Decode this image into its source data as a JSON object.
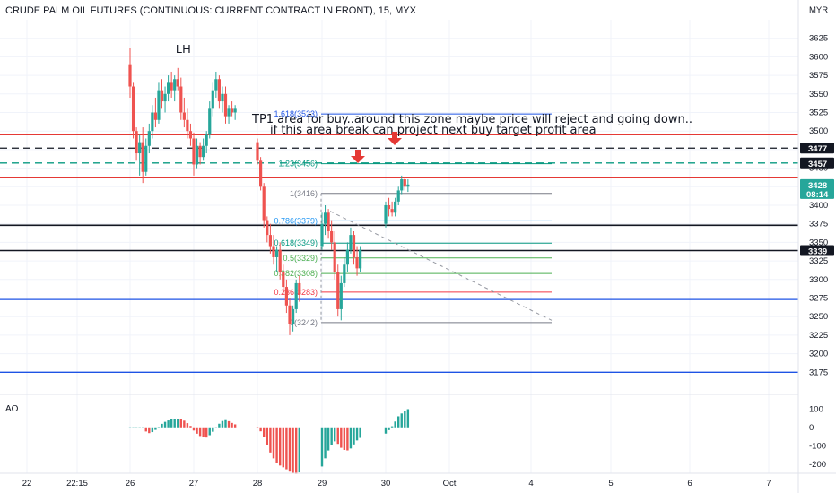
{
  "header": {
    "title": "CRUDE PALM OIL FUTURES (CONTINUOUS: CURRENT CONTRACT IN FRONT), 15, MYX",
    "currency": "MYR"
  },
  "annotations": {
    "lh": "LH",
    "line1": "TP1 area for buy..around this zone maybe price will reject and going down..",
    "line2": "if this area break can project next buy target profit area",
    "ao_label": "AO"
  },
  "price_tags": [
    {
      "value": 3477,
      "label": "3477",
      "bg": "#131722"
    },
    {
      "value": 3457,
      "label": "3457",
      "bg": "#131722"
    },
    {
      "value": 3428,
      "label": "3428",
      "sub": "08:14",
      "bg": "#26a69a"
    },
    {
      "value": 3339,
      "label": "3339",
      "bg": "#131722"
    }
  ],
  "colors": {
    "up": "#26a69a",
    "down": "#ef5350",
    "red_line": "#e53935",
    "blue_line": "#1e53e5",
    "black_line": "#131722",
    "green_dash": "#089981"
  },
  "chart_data": [
    {
      "type": "candlestick",
      "title": "CRUDE PALM OIL FUTURES (CONTINUOUS: CURRENT CONTRACT IN FRONT), 15, MYX",
      "ylim": [
        3150,
        3650
      ],
      "y_ticks": [
        3175,
        3200,
        3225,
        3250,
        3275,
        3300,
        3325,
        3350,
        3375,
        3400,
        3425,
        3450,
        3475,
        3500,
        3525,
        3550,
        3575,
        3600,
        3625
      ],
      "x_ticks": [
        {
          "label": "22",
          "pos": 0.0
        },
        {
          "label": "22:15",
          "pos": 1.0
        },
        {
          "label": "26",
          "pos": 2.0
        },
        {
          "label": "27",
          "pos": 3.0
        },
        {
          "label": "28",
          "pos": 4.0
        },
        {
          "label": "29",
          "pos": 5.0
        },
        {
          "label": "30",
          "pos": 6.0
        },
        {
          "label": "Oct",
          "pos": 7.0
        },
        {
          "label": "4",
          "pos": 8.0
        },
        {
          "label": "5",
          "pos": 9.0
        },
        {
          "label": "6",
          "pos": 10.0
        },
        {
          "label": "7",
          "pos": 11.0
        }
      ],
      "horizontal_lines": [
        {
          "price": 3495,
          "color": "red",
          "style": "solid"
        },
        {
          "price": 3477,
          "color": "black",
          "style": "dashed"
        },
        {
          "price": 3457,
          "color": "green",
          "style": "dashed"
        },
        {
          "price": 3437,
          "color": "red",
          "style": "solid"
        },
        {
          "price": 3373,
          "color": "black",
          "style": "solid"
        },
        {
          "price": 3339,
          "color": "black",
          "style": "solid"
        },
        {
          "price": 3273,
          "color": "blue",
          "style": "solid"
        },
        {
          "price": 3175,
          "color": "blue",
          "style": "solid"
        }
      ],
      "fib_levels": [
        {
          "label": "1.618(3523)",
          "price": 3523,
          "color": "#1e53e5"
        },
        {
          "label": "1.23(3456)",
          "price": 3456,
          "color": "#089981"
        },
        {
          "label": "1(3416)",
          "price": 3416,
          "color": "#787b86"
        },
        {
          "label": "0.786(3379)",
          "price": 3379,
          "color": "#2196f3"
        },
        {
          "label": "0.618(3349)",
          "price": 3349,
          "color": "#089981"
        },
        {
          "label": "0.5(3329)",
          "price": 3329,
          "color": "#4caf50"
        },
        {
          "label": "0.382(3308)",
          "price": 3308,
          "color": "#4caf50"
        },
        {
          "label": "0.236(3283)",
          "price": 3283,
          "color": "#f23645"
        },
        {
          "label": "0(3242)",
          "price": 3242,
          "color": "#787b86"
        }
      ],
      "candles": [
        {
          "t": 2.0,
          "o": 3590,
          "h": 3612,
          "l": 3545,
          "c": 3560
        },
        {
          "t": 2.05,
          "o": 3560,
          "h": 3565,
          "l": 3490,
          "c": 3500
        },
        {
          "t": 2.1,
          "o": 3500,
          "h": 3505,
          "l": 3460,
          "c": 3470
        },
        {
          "t": 2.15,
          "o": 3470,
          "h": 3495,
          "l": 3440,
          "c": 3485
        },
        {
          "t": 2.2,
          "o": 3485,
          "h": 3505,
          "l": 3430,
          "c": 3445
        },
        {
          "t": 2.25,
          "o": 3445,
          "h": 3490,
          "l": 3440,
          "c": 3480
        },
        {
          "t": 2.3,
          "o": 3480,
          "h": 3510,
          "l": 3470,
          "c": 3500
        },
        {
          "t": 2.35,
          "o": 3500,
          "h": 3535,
          "l": 3490,
          "c": 3525
        },
        {
          "t": 2.4,
          "o": 3525,
          "h": 3545,
          "l": 3505,
          "c": 3515
        },
        {
          "t": 2.45,
          "o": 3515,
          "h": 3565,
          "l": 3510,
          "c": 3555
        },
        {
          "t": 2.5,
          "o": 3555,
          "h": 3570,
          "l": 3530,
          "c": 3540
        },
        {
          "t": 2.55,
          "o": 3540,
          "h": 3560,
          "l": 3525,
          "c": 3550
        },
        {
          "t": 2.6,
          "o": 3550,
          "h": 3575,
          "l": 3540,
          "c": 3565
        },
        {
          "t": 2.65,
          "o": 3565,
          "h": 3580,
          "l": 3545,
          "c": 3555
        },
        {
          "t": 2.7,
          "o": 3555,
          "h": 3575,
          "l": 3540,
          "c": 3570
        },
        {
          "t": 2.75,
          "o": 3570,
          "h": 3585,
          "l": 3555,
          "c": 3560
        },
        {
          "t": 2.8,
          "o": 3560,
          "h": 3572,
          "l": 3515,
          "c": 3525
        },
        {
          "t": 2.85,
          "o": 3525,
          "h": 3545,
          "l": 3505,
          "c": 3515
        },
        {
          "t": 2.9,
          "o": 3515,
          "h": 3530,
          "l": 3490,
          "c": 3500
        },
        {
          "t": 2.95,
          "o": 3500,
          "h": 3510,
          "l": 3480,
          "c": 3490
        },
        {
          "t": 3.0,
          "o": 3490,
          "h": 3498,
          "l": 3440,
          "c": 3455
        },
        {
          "t": 3.05,
          "o": 3455,
          "h": 3490,
          "l": 3450,
          "c": 3480
        },
        {
          "t": 3.1,
          "o": 3480,
          "h": 3485,
          "l": 3455,
          "c": 3465
        },
        {
          "t": 3.15,
          "o": 3465,
          "h": 3490,
          "l": 3460,
          "c": 3480
        },
        {
          "t": 3.2,
          "o": 3480,
          "h": 3500,
          "l": 3470,
          "c": 3495
        },
        {
          "t": 3.25,
          "o": 3495,
          "h": 3540,
          "l": 3490,
          "c": 3530
        },
        {
          "t": 3.3,
          "o": 3530,
          "h": 3565,
          "l": 3520,
          "c": 3555
        },
        {
          "t": 3.35,
          "o": 3555,
          "h": 3580,
          "l": 3545,
          "c": 3570
        },
        {
          "t": 3.4,
          "o": 3570,
          "h": 3575,
          "l": 3530,
          "c": 3540
        },
        {
          "t": 3.45,
          "o": 3540,
          "h": 3560,
          "l": 3525,
          "c": 3550
        },
        {
          "t": 3.5,
          "o": 3550,
          "h": 3560,
          "l": 3510,
          "c": 3520
        },
        {
          "t": 3.55,
          "o": 3520,
          "h": 3535,
          "l": 3510,
          "c": 3530
        },
        {
          "t": 3.6,
          "o": 3530,
          "h": 3540,
          "l": 3520,
          "c": 3525
        },
        {
          "t": 3.65,
          "o": 3525,
          "h": 3535,
          "l": 3515,
          "c": 3530
        },
        {
          "t": 4.0,
          "o": 3485,
          "h": 3490,
          "l": 3455,
          "c": 3460
        },
        {
          "t": 4.05,
          "o": 3460,
          "h": 3465,
          "l": 3420,
          "c": 3425
        },
        {
          "t": 4.1,
          "o": 3425,
          "h": 3430,
          "l": 3370,
          "c": 3380
        },
        {
          "t": 4.15,
          "o": 3380,
          "h": 3385,
          "l": 3350,
          "c": 3360
        },
        {
          "t": 4.2,
          "o": 3360,
          "h": 3375,
          "l": 3335,
          "c": 3345
        },
        {
          "t": 4.25,
          "o": 3345,
          "h": 3360,
          "l": 3320,
          "c": 3330
        },
        {
          "t": 4.3,
          "o": 3330,
          "h": 3345,
          "l": 3310,
          "c": 3340
        },
        {
          "t": 4.35,
          "o": 3340,
          "h": 3350,
          "l": 3300,
          "c": 3310
        },
        {
          "t": 4.4,
          "o": 3310,
          "h": 3320,
          "l": 3280,
          "c": 3290
        },
        {
          "t": 4.45,
          "o": 3290,
          "h": 3300,
          "l": 3255,
          "c": 3265
        },
        {
          "t": 4.5,
          "o": 3265,
          "h": 3275,
          "l": 3225,
          "c": 3240
        },
        {
          "t": 4.55,
          "o": 3240,
          "h": 3265,
          "l": 3230,
          "c": 3260
        },
        {
          "t": 4.6,
          "o": 3260,
          "h": 3300,
          "l": 3255,
          "c": 3295
        },
        {
          "t": 4.65,
          "o": 3295,
          "h": 3305,
          "l": 3270,
          "c": 3280
        },
        {
          "t": 5.0,
          "o": 3345,
          "h": 3390,
          "l": 3340,
          "c": 3375
        },
        {
          "t": 5.05,
          "o": 3375,
          "h": 3400,
          "l": 3360,
          "c": 3390
        },
        {
          "t": 5.1,
          "o": 3390,
          "h": 3395,
          "l": 3355,
          "c": 3365
        },
        {
          "t": 5.15,
          "o": 3365,
          "h": 3380,
          "l": 3340,
          "c": 3350
        },
        {
          "t": 5.2,
          "o": 3350,
          "h": 3365,
          "l": 3300,
          "c": 3310
        },
        {
          "t": 5.25,
          "o": 3310,
          "h": 3320,
          "l": 3250,
          "c": 3260
        },
        {
          "t": 5.3,
          "o": 3260,
          "h": 3305,
          "l": 3245,
          "c": 3295
        },
        {
          "t": 5.35,
          "o": 3295,
          "h": 3330,
          "l": 3290,
          "c": 3320
        },
        {
          "t": 5.4,
          "o": 3320,
          "h": 3350,
          "l": 3310,
          "c": 3340
        },
        {
          "t": 5.45,
          "o": 3340,
          "h": 3370,
          "l": 3335,
          "c": 3360
        },
        {
          "t": 5.5,
          "o": 3360,
          "h": 3365,
          "l": 3320,
          "c": 3330
        },
        {
          "t": 5.55,
          "o": 3330,
          "h": 3345,
          "l": 3305,
          "c": 3315
        },
        {
          "t": 5.6,
          "o": 3315,
          "h": 3345,
          "l": 3310,
          "c": 3340
        },
        {
          "t": 6.0,
          "o": 3375,
          "h": 3405,
          "l": 3370,
          "c": 3400
        },
        {
          "t": 6.05,
          "o": 3400,
          "h": 3410,
          "l": 3385,
          "c": 3395
        },
        {
          "t": 6.1,
          "o": 3395,
          "h": 3405,
          "l": 3385,
          "c": 3390
        },
        {
          "t": 6.15,
          "o": 3390,
          "h": 3410,
          "l": 3385,
          "c": 3405
        },
        {
          "t": 6.2,
          "o": 3405,
          "h": 3425,
          "l": 3400,
          "c": 3420
        },
        {
          "t": 6.25,
          "o": 3420,
          "h": 3440,
          "l": 3415,
          "c": 3435
        },
        {
          "t": 6.3,
          "o": 3435,
          "h": 3438,
          "l": 3420,
          "c": 3425
        },
        {
          "t": 6.35,
          "o": 3425,
          "h": 3435,
          "l": 3418,
          "c": 3428
        }
      ],
      "ao": {
        "ylim": [
          -240,
          150
        ],
        "y_ticks": [
          -200,
          -100,
          0,
          100
        ],
        "label": "AO"
      }
    }
  ]
}
